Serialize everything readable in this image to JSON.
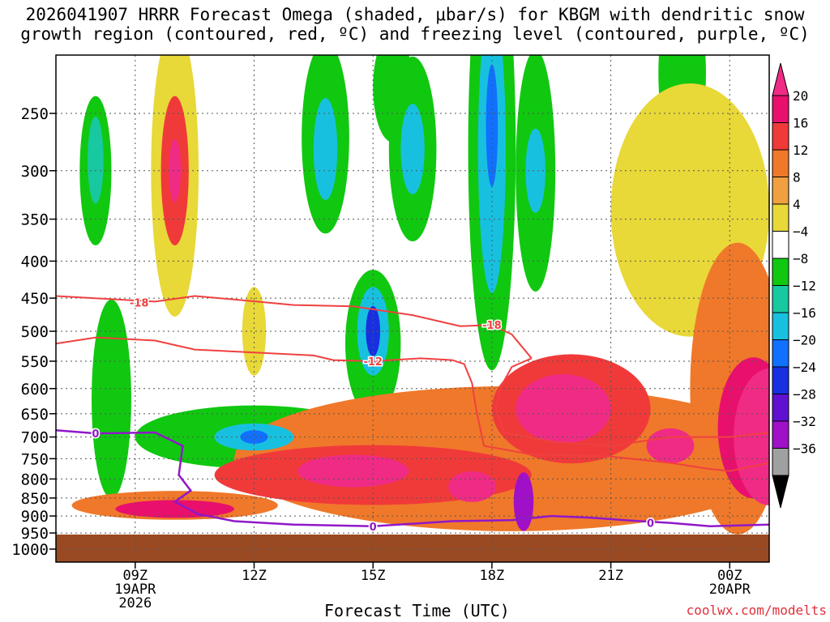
{
  "title": {
    "line1": "2026041907 HRRR Forecast Omega (shaded, μbar/s) for KBGM with dendritic snow",
    "line2": "growth region (contoured, red, ºC) and freezing level (contoured, purple, ºC)"
  },
  "credit": "coolwx.com/modelts",
  "chart_data": {
    "type": "heatmap",
    "title": "2026041907 HRRR Forecast Omega (shaded, μbar/s) for KBGM with dendritic snow growth region (contoured, red, ºC) and freezing level (contoured, purple, ºC)",
    "xlabel": "Forecast Time (UTC)",
    "ylabel": "",
    "x_range_hours_from_07Z": [
      0,
      18
    ],
    "y_range_hPa": [
      1000,
      200
    ],
    "x_ticks": [
      {
        "hour": 2,
        "lines": [
          "09Z",
          "19APR",
          "2026"
        ]
      },
      {
        "hour": 5,
        "lines": [
          "12Z"
        ]
      },
      {
        "hour": 8,
        "lines": [
          "15Z"
        ]
      },
      {
        "hour": 11,
        "lines": [
          "18Z"
        ]
      },
      {
        "hour": 14,
        "lines": [
          "21Z"
        ]
      },
      {
        "hour": 17,
        "lines": [
          "00Z",
          "20APR"
        ]
      }
    ],
    "y_ticks": [
      250,
      300,
      350,
      400,
      450,
      500,
      550,
      600,
      650,
      700,
      750,
      800,
      850,
      900,
      950,
      1000
    ],
    "colorbar": {
      "labels": [
        "20",
        "16",
        "12",
        "8",
        "4",
        "−4",
        "−8",
        "−12",
        "−16",
        "−20",
        "−24",
        "−28",
        "−32",
        "−36"
      ],
      "colors": [
        "#e8106c",
        "#f03a3a",
        "#f0782a",
        "#f0a040",
        "#e8d838",
        "#ffffff",
        "#10c810",
        "#18c8a0",
        "#18c0e0",
        "#1070ff",
        "#1830e0",
        "#6010d0",
        "#a010c8",
        "#a0a0a0"
      ],
      "top_color": "#f02b86",
      "bottom_color": "#000000"
    },
    "omega_blobs": [
      {
        "t": 1.0,
        "p": 300,
        "rt": 0.4,
        "rp": 70,
        "v": -6
      },
      {
        "t": 1.0,
        "p": 290,
        "rt": 0.2,
        "rp": 40,
        "v": -10
      },
      {
        "t": 3.0,
        "p": 300,
        "rt": 0.6,
        "rp": 130,
        "v": 6
      },
      {
        "t": 3.0,
        "p": 300,
        "rt": 0.35,
        "rp": 70,
        "v": 14
      },
      {
        "t": 3.0,
        "p": 300,
        "rt": 0.15,
        "rp": 30,
        "v": 20
      },
      {
        "t": 6.8,
        "p": 270,
        "rt": 0.6,
        "rp": 80,
        "v": -6
      },
      {
        "t": 6.8,
        "p": 280,
        "rt": 0.3,
        "rp": 45,
        "v": -12
      },
      {
        "t": 8.5,
        "p": 230,
        "rt": 0.5,
        "rp": 40,
        "v": -6
      },
      {
        "t": 9.0,
        "p": 280,
        "rt": 0.6,
        "rp": 80,
        "v": -6
      },
      {
        "t": 9.0,
        "p": 280,
        "rt": 0.3,
        "rp": 40,
        "v": -12
      },
      {
        "t": 11.0,
        "p": 280,
        "rt": 0.6,
        "rp": 170,
        "v": -7
      },
      {
        "t": 11.0,
        "p": 280,
        "rt": 0.35,
        "rp": 120,
        "v": -12
      },
      {
        "t": 11.0,
        "p": 260,
        "rt": 0.15,
        "rp": 50,
        "v": -16
      },
      {
        "t": 12.1,
        "p": 300,
        "rt": 0.5,
        "rp": 110,
        "v": -6
      },
      {
        "t": 12.1,
        "p": 300,
        "rt": 0.25,
        "rp": 40,
        "v": -12
      },
      {
        "t": 15.8,
        "p": 220,
        "rt": 0.6,
        "rp": 60,
        "v": -6
      },
      {
        "t": 5.0,
        "p": 700,
        "rt": 3.0,
        "rp": 70,
        "v": -6
      },
      {
        "t": 5.0,
        "p": 700,
        "rt": 1.0,
        "rp": 30,
        "v": -12
      },
      {
        "t": 5.0,
        "p": 700,
        "rt": 0.35,
        "rp": 15,
        "v": -18
      },
      {
        "t": 1.4,
        "p": 620,
        "rt": 0.5,
        "rp": 190,
        "v": -6
      },
      {
        "t": 8.0,
        "p": 520,
        "rt": 0.7,
        "rp": 120,
        "v": -6
      },
      {
        "t": 8.0,
        "p": 500,
        "rt": 0.4,
        "rp": 70,
        "v": -12
      },
      {
        "t": 8.0,
        "p": 500,
        "rt": 0.18,
        "rp": 40,
        "v": -20
      },
      {
        "t": 5.0,
        "p": 500,
        "rt": 0.3,
        "rp": 70,
        "v": 5
      },
      {
        "t": 3.0,
        "p": 870,
        "rt": 2.6,
        "rp": 40,
        "v": 8
      },
      {
        "t": 3.0,
        "p": 880,
        "rt": 1.5,
        "rp": 25,
        "v": 16
      },
      {
        "t": 11.5,
        "p": 750,
        "rt": 7.0,
        "rp": 170,
        "v": 8
      },
      {
        "t": 8.0,
        "p": 790,
        "rt": 4.0,
        "rp": 75,
        "v": 12
      },
      {
        "t": 7.5,
        "p": 780,
        "rt": 1.4,
        "rp": 40,
        "v": 20
      },
      {
        "t": 10.5,
        "p": 820,
        "rt": 0.6,
        "rp": 40,
        "v": 20
      },
      {
        "t": 13.0,
        "p": 640,
        "rt": 2.0,
        "rp": 110,
        "v": 14
      },
      {
        "t": 12.8,
        "p": 640,
        "rt": 1.2,
        "rp": 70,
        "v": 20
      },
      {
        "t": 15.5,
        "p": 720,
        "rt": 0.6,
        "rp": 40,
        "v": 20
      },
      {
        "t": 17.2,
        "p": 600,
        "rt": 1.2,
        "rp": 260,
        "v": 8
      },
      {
        "t": 17.6,
        "p": 680,
        "rt": 0.9,
        "rp": 150,
        "v": 16
      },
      {
        "t": 18.0,
        "p": 700,
        "rt": 0.9,
        "rp": 150,
        "v": 22
      },
      {
        "t": 16.0,
        "p": 340,
        "rt": 2.0,
        "rp": 130,
        "v": 6
      },
      {
        "t": 11.8,
        "p": 860,
        "rt": 0.25,
        "rp": 80,
        "v": -30
      }
    ],
    "dgz_contours": [
      {
        "label": "-18",
        "points": [
          [
            0,
            447
          ],
          [
            2.5,
            455
          ],
          [
            3.5,
            447
          ],
          [
            4.5,
            452
          ],
          [
            6,
            460
          ],
          [
            7.5,
            462
          ],
          [
            9,
            475
          ],
          [
            10.2,
            492
          ],
          [
            11.0,
            490
          ],
          [
            11.5,
            505
          ],
          [
            12.0,
            545
          ]
        ]
      },
      {
        "label": "-12",
        "points": [
          [
            0,
            520
          ],
          [
            1.0,
            510
          ],
          [
            2.5,
            515
          ],
          [
            3.5,
            530
          ],
          [
            5.0,
            535
          ],
          [
            6.5,
            540
          ],
          [
            7.0,
            548
          ],
          [
            8.0,
            550
          ],
          [
            9.2,
            545
          ],
          [
            10.0,
            548
          ],
          [
            10.3,
            555
          ],
          [
            10.5,
            590
          ],
          [
            10.6,
            640
          ]
        ]
      },
      {
        "label": "-12",
        "points": [
          [
            12.0,
            545
          ],
          [
            11.5,
            560
          ],
          [
            11.2,
            600
          ],
          [
            11.1,
            640
          ],
          [
            11.3,
            690
          ],
          [
            12.5,
            710
          ],
          [
            14.0,
            720
          ],
          [
            15.5,
            700
          ],
          [
            16.5,
            700
          ],
          [
            17.0,
            700
          ],
          [
            18.0,
            690
          ]
        ]
      },
      {
        "label": "-18",
        "points": [
          [
            10.6,
            640
          ],
          [
            10.8,
            720
          ],
          [
            12.0,
            740
          ],
          [
            14.0,
            745
          ],
          [
            15.5,
            760
          ],
          [
            16.5,
            775
          ],
          [
            17.0,
            780
          ],
          [
            18.0,
            760
          ]
        ]
      }
    ],
    "freezing_level": {
      "label": "0",
      "points": [
        [
          0,
          685
        ],
        [
          1.0,
          692
        ],
        [
          2.5,
          690
        ],
        [
          3.2,
          720
        ],
        [
          3.1,
          790
        ],
        [
          3.4,
          830
        ],
        [
          3.0,
          860
        ],
        [
          3.6,
          895
        ],
        [
          4.5,
          915
        ],
        [
          6.0,
          925
        ],
        [
          8.0,
          930
        ],
        [
          10.0,
          915
        ],
        [
          11.5,
          912
        ],
        [
          12.5,
          900
        ],
        [
          13.5,
          905
        ],
        [
          14.5,
          913
        ],
        [
          15.5,
          920
        ],
        [
          16.5,
          930
        ],
        [
          18.0,
          925
        ]
      ],
      "label_positions": [
        [
          1.0,
          692
        ],
        [
          8.0,
          930
        ],
        [
          15.0,
          920
        ]
      ]
    },
    "contour_label_positions": [
      [
        2.1,
        456
      ],
      [
        11.0,
        490
      ],
      [
        8.0,
        550
      ]
    ]
  }
}
